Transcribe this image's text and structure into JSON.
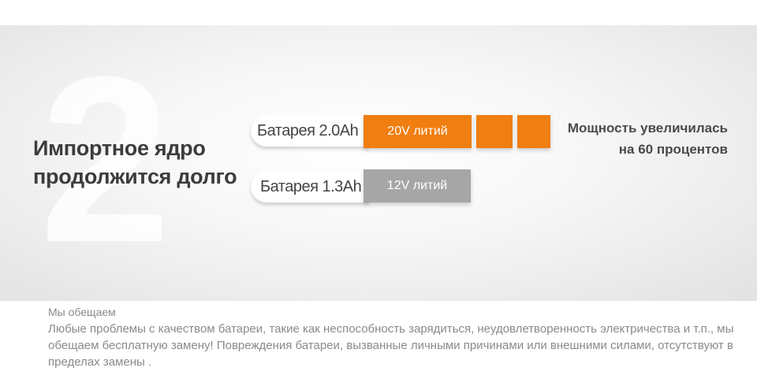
{
  "banner": {
    "big_number": "2",
    "headline": "Импортное ядро продолжится долго",
    "power_text": "Мощность увеличилась на 60 процентов"
  },
  "batteries": [
    {
      "label": "Батарея 2.0Ah",
      "bar_text": "20V литий",
      "color": "#f07e10"
    },
    {
      "label": "Батарея 1.3Ah",
      "bar_text": "12V литий",
      "color": "#a6a6a6"
    }
  ],
  "promise": {
    "title": "Мы обещаем",
    "body": "Любые проблемы с качеством батареи, такие как неспособность зарядиться, неудовлетворенность электричества и т.п., мы обещаем бесплатную замену! Повреждения батареи, вызванные личными причинами или внешними силами, отсутствуют в пределах замены ."
  }
}
